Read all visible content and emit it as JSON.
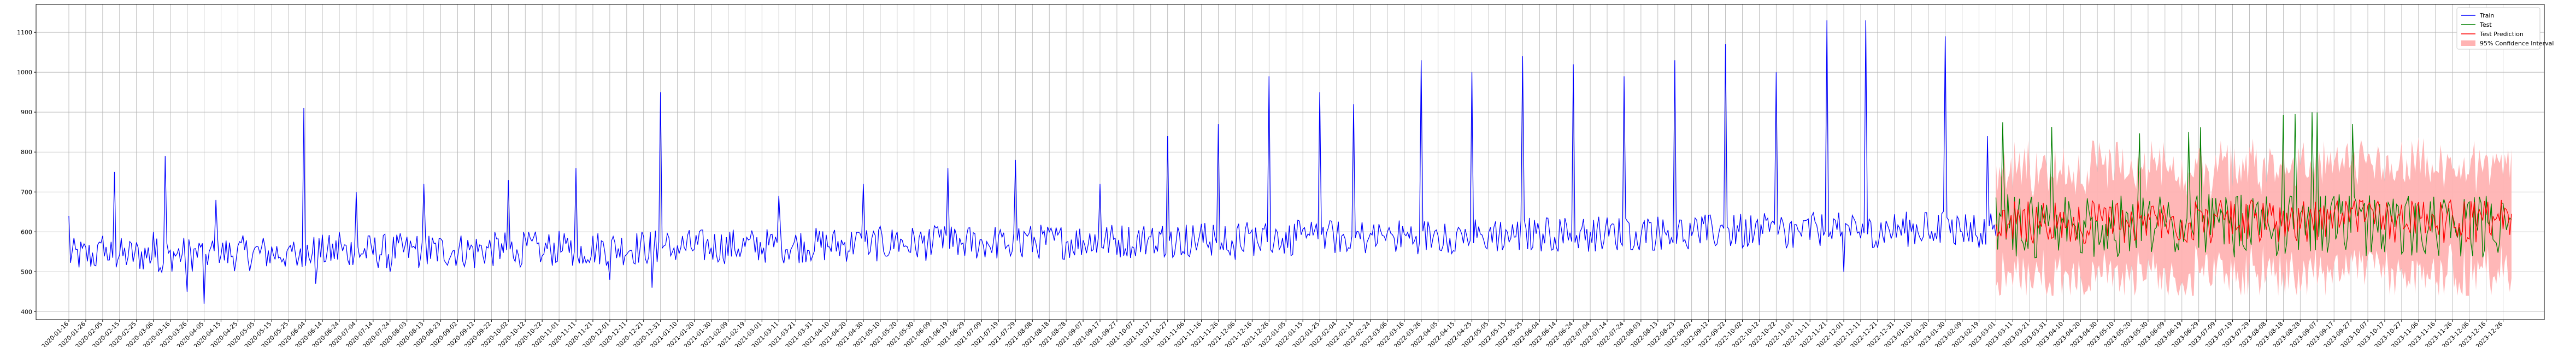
{
  "chart_data": {
    "type": "line",
    "title": "",
    "xlabel": "",
    "ylabel": "",
    "ylim": [
      380,
      1170
    ],
    "yticks": [
      400,
      500,
      600,
      700,
      800,
      900,
      1000,
      1100
    ],
    "grid": true,
    "legend_position": "top-right",
    "x_start": "2020-01-16",
    "x_end": "2023-12-31",
    "x_tick_dates": [
      "2020-01-16",
      "2020-01-26",
      "2020-02-05",
      "2020-02-15",
      "2020-02-25",
      "2020-03-06",
      "2020-03-16",
      "2020-03-26",
      "2020-04-05",
      "2020-04-15",
      "2020-04-25",
      "2020-05-05",
      "2020-05-15",
      "2020-05-25",
      "2020-06-04",
      "2020-06-14",
      "2020-06-24",
      "2020-07-04",
      "2020-07-14",
      "2020-07-24",
      "2020-08-03",
      "2020-08-13",
      "2020-08-23",
      "2020-09-02",
      "2020-09-12",
      "2020-09-22",
      "2020-10-02",
      "2020-10-12",
      "2020-10-22",
      "2020-11-01",
      "2020-11-11",
      "2020-11-21",
      "2020-12-01",
      "2020-12-11",
      "2020-12-21",
      "2020-12-31",
      "2021-01-10",
      "2021-01-20",
      "2021-01-30",
      "2021-02-09",
      "2021-02-19",
      "2021-03-01",
      "2021-03-11",
      "2021-03-21",
      "2021-03-31",
      "2021-04-10",
      "2021-04-20",
      "2021-04-30",
      "2021-05-10",
      "2021-05-20",
      "2021-05-30",
      "2021-06-09",
      "2021-06-19",
      "2021-06-29",
      "2021-07-09",
      "2021-07-19",
      "2021-07-29",
      "2021-08-08",
      "2021-08-18",
      "2021-08-28",
      "2021-09-07",
      "2021-09-17",
      "2021-09-27",
      "2021-10-07",
      "2021-10-17",
      "2021-10-27",
      "2021-11-06",
      "2021-11-16",
      "2021-11-26",
      "2021-12-06",
      "2021-12-16",
      "2021-12-26",
      "2022-01-05",
      "2022-01-15",
      "2022-01-25",
      "2022-02-04",
      "2022-02-14",
      "2022-02-24",
      "2022-03-06",
      "2022-03-16",
      "2022-03-26",
      "2022-04-05",
      "2022-04-15",
      "2022-04-25",
      "2022-05-05",
      "2022-05-15",
      "2022-05-25",
      "2022-06-04",
      "2022-06-14",
      "2022-06-24",
      "2022-07-04",
      "2022-07-14",
      "2022-07-24",
      "2022-08-03",
      "2022-08-13",
      "2022-08-23",
      "2022-09-02",
      "2022-09-12",
      "2022-09-22",
      "2022-10-02",
      "2022-10-12",
      "2022-10-22",
      "2022-11-01",
      "2022-11-11",
      "2022-11-21",
      "2022-12-01",
      "2022-12-11",
      "2022-12-21",
      "2022-12-31",
      "2023-01-10",
      "2023-01-20",
      "2023-01-30",
      "2023-02-09",
      "2023-02-19",
      "2023-03-01",
      "2023-03-11",
      "2023-03-21",
      "2023-03-31",
      "2023-04-10",
      "2023-04-20",
      "2023-04-30",
      "2023-05-10",
      "2023-05-20",
      "2023-05-30",
      "2023-06-09",
      "2023-06-19",
      "2023-06-29",
      "2023-07-09",
      "2023-07-19",
      "2023-07-29",
      "2023-08-08",
      "2023-08-18",
      "2023-08-28",
      "2023-09-07",
      "2023-09-17",
      "2023-09-27",
      "2023-10-07",
      "2023-10-17",
      "2023-10-27",
      "2023-11-06",
      "2023-11-16",
      "2023-11-26",
      "2023-12-06",
      "2023-12-16",
      "2023-12-26"
    ],
    "test_start": "2023-03-01",
    "legend": [
      "Train",
      "Test",
      "Test Prediction",
      "95% Confidence Interval"
    ],
    "colors": {
      "train": "#0000ff",
      "test": "#008000",
      "prediction": "#ff0000",
      "ci": "#ffb3b3"
    },
    "series": [
      {
        "name": "Train",
        "key": "train",
        "description_keypoints": [
          [
            "2020-01-16",
            640
          ],
          [
            "2020-02-05",
            590
          ],
          [
            "2020-02-12",
            750
          ],
          [
            "2020-02-18",
            560
          ],
          [
            "2020-03-06",
            600
          ],
          [
            "2020-03-13",
            790
          ],
          [
            "2020-03-26",
            450
          ],
          [
            "2020-04-05",
            420
          ],
          [
            "2020-04-12",
            680
          ],
          [
            "2020-05-05",
            560
          ],
          [
            "2020-05-25",
            560
          ],
          [
            "2020-06-03",
            910
          ],
          [
            "2020-06-10",
            470
          ],
          [
            "2020-06-24",
            600
          ],
          [
            "2020-07-04",
            700
          ],
          [
            "2020-07-24",
            500
          ],
          [
            "2020-08-13",
            720
          ],
          [
            "2020-09-12",
            510
          ],
          [
            "2020-10-02",
            730
          ],
          [
            "2020-10-22",
            540
          ],
          [
            "2020-11-11",
            760
          ],
          [
            "2020-12-01",
            480
          ],
          [
            "2020-12-26",
            460
          ],
          [
            "2020-12-31",
            950
          ],
          [
            "2021-01-06",
            540
          ],
          [
            "2021-02-09",
            540
          ],
          [
            "2021-03-11",
            690
          ],
          [
            "2021-03-31",
            540
          ],
          [
            "2021-04-30",
            720
          ],
          [
            "2021-05-20",
            600
          ],
          [
            "2021-06-19",
            760
          ],
          [
            "2021-07-09",
            580
          ],
          [
            "2021-07-29",
            780
          ],
          [
            "2021-08-18",
            600
          ],
          [
            "2021-09-17",
            720
          ],
          [
            "2021-10-07",
            560
          ],
          [
            "2021-10-27",
            840
          ],
          [
            "2021-11-16",
            620
          ],
          [
            "2021-11-26",
            870
          ],
          [
            "2021-12-06",
            530
          ],
          [
            "2021-12-26",
            990
          ],
          [
            "2022-01-05",
            600
          ],
          [
            "2022-01-25",
            950
          ],
          [
            "2022-02-04",
            590
          ],
          [
            "2022-02-14",
            920
          ],
          [
            "2022-03-06",
            600
          ],
          [
            "2022-03-26",
            1030
          ],
          [
            "2022-04-05",
            590
          ],
          [
            "2022-04-25",
            1000
          ],
          [
            "2022-05-05",
            600
          ],
          [
            "2022-05-25",
            1040
          ],
          [
            "2022-06-04",
            600
          ],
          [
            "2022-06-24",
            1020
          ],
          [
            "2022-07-04",
            600
          ],
          [
            "2022-07-24",
            990
          ],
          [
            "2022-08-03",
            590
          ],
          [
            "2022-08-23",
            1030
          ],
          [
            "2022-09-02",
            590
          ],
          [
            "2022-09-22",
            1070
          ],
          [
            "2022-10-02",
            560
          ],
          [
            "2022-10-22",
            1000
          ],
          [
            "2022-11-01",
            560
          ],
          [
            "2022-11-21",
            1130
          ],
          [
            "2022-12-01",
            500
          ],
          [
            "2022-12-14",
            1130
          ],
          [
            "2022-12-21",
            560
          ],
          [
            "2023-01-10",
            600
          ],
          [
            "2023-01-30",
            1090
          ],
          [
            "2023-02-09",
            600
          ],
          [
            "2023-02-19",
            560
          ],
          [
            "2023-02-24",
            840
          ],
          [
            "2023-03-01",
            590
          ]
        ]
      },
      {
        "name": "Test",
        "key": "test",
        "mean": 615,
        "range": [
          480,
          900
        ]
      },
      {
        "name": "Test Prediction",
        "key": "prediction",
        "mean": 625,
        "range": [
          540,
          720
        ]
      },
      {
        "name": "95% Confidence Interval",
        "key": "ci",
        "upper_mean": 760,
        "lower_mean": 490
      }
    ]
  }
}
